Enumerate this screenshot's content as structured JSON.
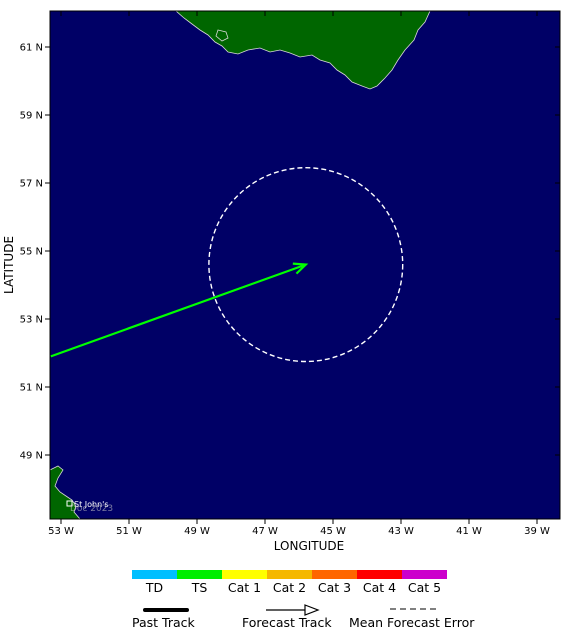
{
  "map": {
    "background_color": "#000066",
    "land_color": "#006600",
    "xlabel": "LONGITUDE",
    "ylabel": "LATITUDE",
    "lon_ticks": [
      "53 W",
      "51 W",
      "49 W",
      "47 W",
      "45 W",
      "43 W",
      "41 W",
      "39 W"
    ],
    "lat_ticks": [
      "61 N",
      "59 N",
      "57 N",
      "55 N",
      "53 N",
      "51 N",
      "49 N"
    ],
    "city_label": "St John's",
    "watermark": "Doc 2023"
  },
  "forecast": {
    "track_color": "#00ff00",
    "start": {
      "lon": -53.3,
      "lat": 51.9
    },
    "end": {
      "lon": -45.8,
      "lat": 54.6
    },
    "error_circle": {
      "center_lon": -45.8,
      "center_lat": 54.6,
      "radius_deg_lat": 2.85
    }
  },
  "legend": {
    "categories": [
      {
        "label": "TD",
        "color": "#00bfff"
      },
      {
        "label": "TS",
        "color": "#00ee00"
      },
      {
        "label": "Cat 1",
        "color": "#ffff00"
      },
      {
        "label": "Cat 2",
        "color": "#f5b800"
      },
      {
        "label": "Cat 3",
        "color": "#ff6600"
      },
      {
        "label": "Cat 4",
        "color": "#ff0000"
      },
      {
        "label": "Cat 5",
        "color": "#cc00cc"
      }
    ],
    "past_track_label": "Past Track",
    "forecast_track_label": "Forecast Track",
    "error_label": "Mean Forecast Error"
  }
}
